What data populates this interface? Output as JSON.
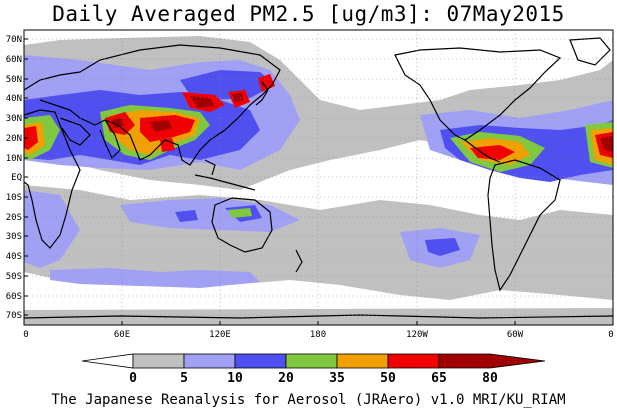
{
  "title": "Daily Averaged PM2.5 [ug/m3]: 07May2015",
  "footer": "The Japanese Reanalysis for Aerosol (JRAero) v1.0 MRI/KU_RIAM",
  "lat_labels": [
    "70N",
    "60N",
    "50N",
    "40N",
    "30N",
    "20N",
    "10N",
    "EQ",
    "10S",
    "20S",
    "30S",
    "40S",
    "50S",
    "60S",
    "70S"
  ],
  "lon_labels": [
    "0",
    "60E",
    "120E",
    "180",
    "120W",
    "60W",
    "0"
  ],
  "colorbar": {
    "ticks": [
      "0",
      "5",
      "10",
      "20",
      "35",
      "50",
      "65",
      "80"
    ],
    "colors": [
      "#ffffff",
      "#c0c0c0",
      "#a0a0f4",
      "#5050f0",
      "#80c840",
      "#f0a000",
      "#f00000",
      "#a00000"
    ]
  }
}
